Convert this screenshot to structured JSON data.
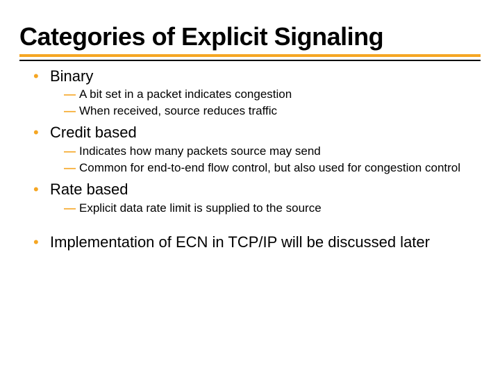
{
  "title": "Categories of Explicit Signaling",
  "colors": {
    "accent": "#f5a623",
    "text": "#000000",
    "background": "#ffffff"
  },
  "typography": {
    "title_family": "Arial Black",
    "title_size_pt": 36,
    "body_family": "Verdana",
    "lvl1_size_pt": 22,
    "lvl2_size_pt": 17
  },
  "items": [
    {
      "label": "Binary",
      "sub": [
        "A bit set in a packet indicates congestion",
        "When received, source reduces traffic"
      ]
    },
    {
      "label": "Credit based",
      "sub": [
        "Indicates how many packets source may send",
        "Common for end-to-end flow control, but also used for congestion control"
      ]
    },
    {
      "label": "Rate based",
      "sub": [
        "Explicit data rate limit is supplied to the source"
      ]
    },
    {
      "label": "Implementation of ECN in TCP/IP will be discussed later",
      "sub": []
    }
  ]
}
